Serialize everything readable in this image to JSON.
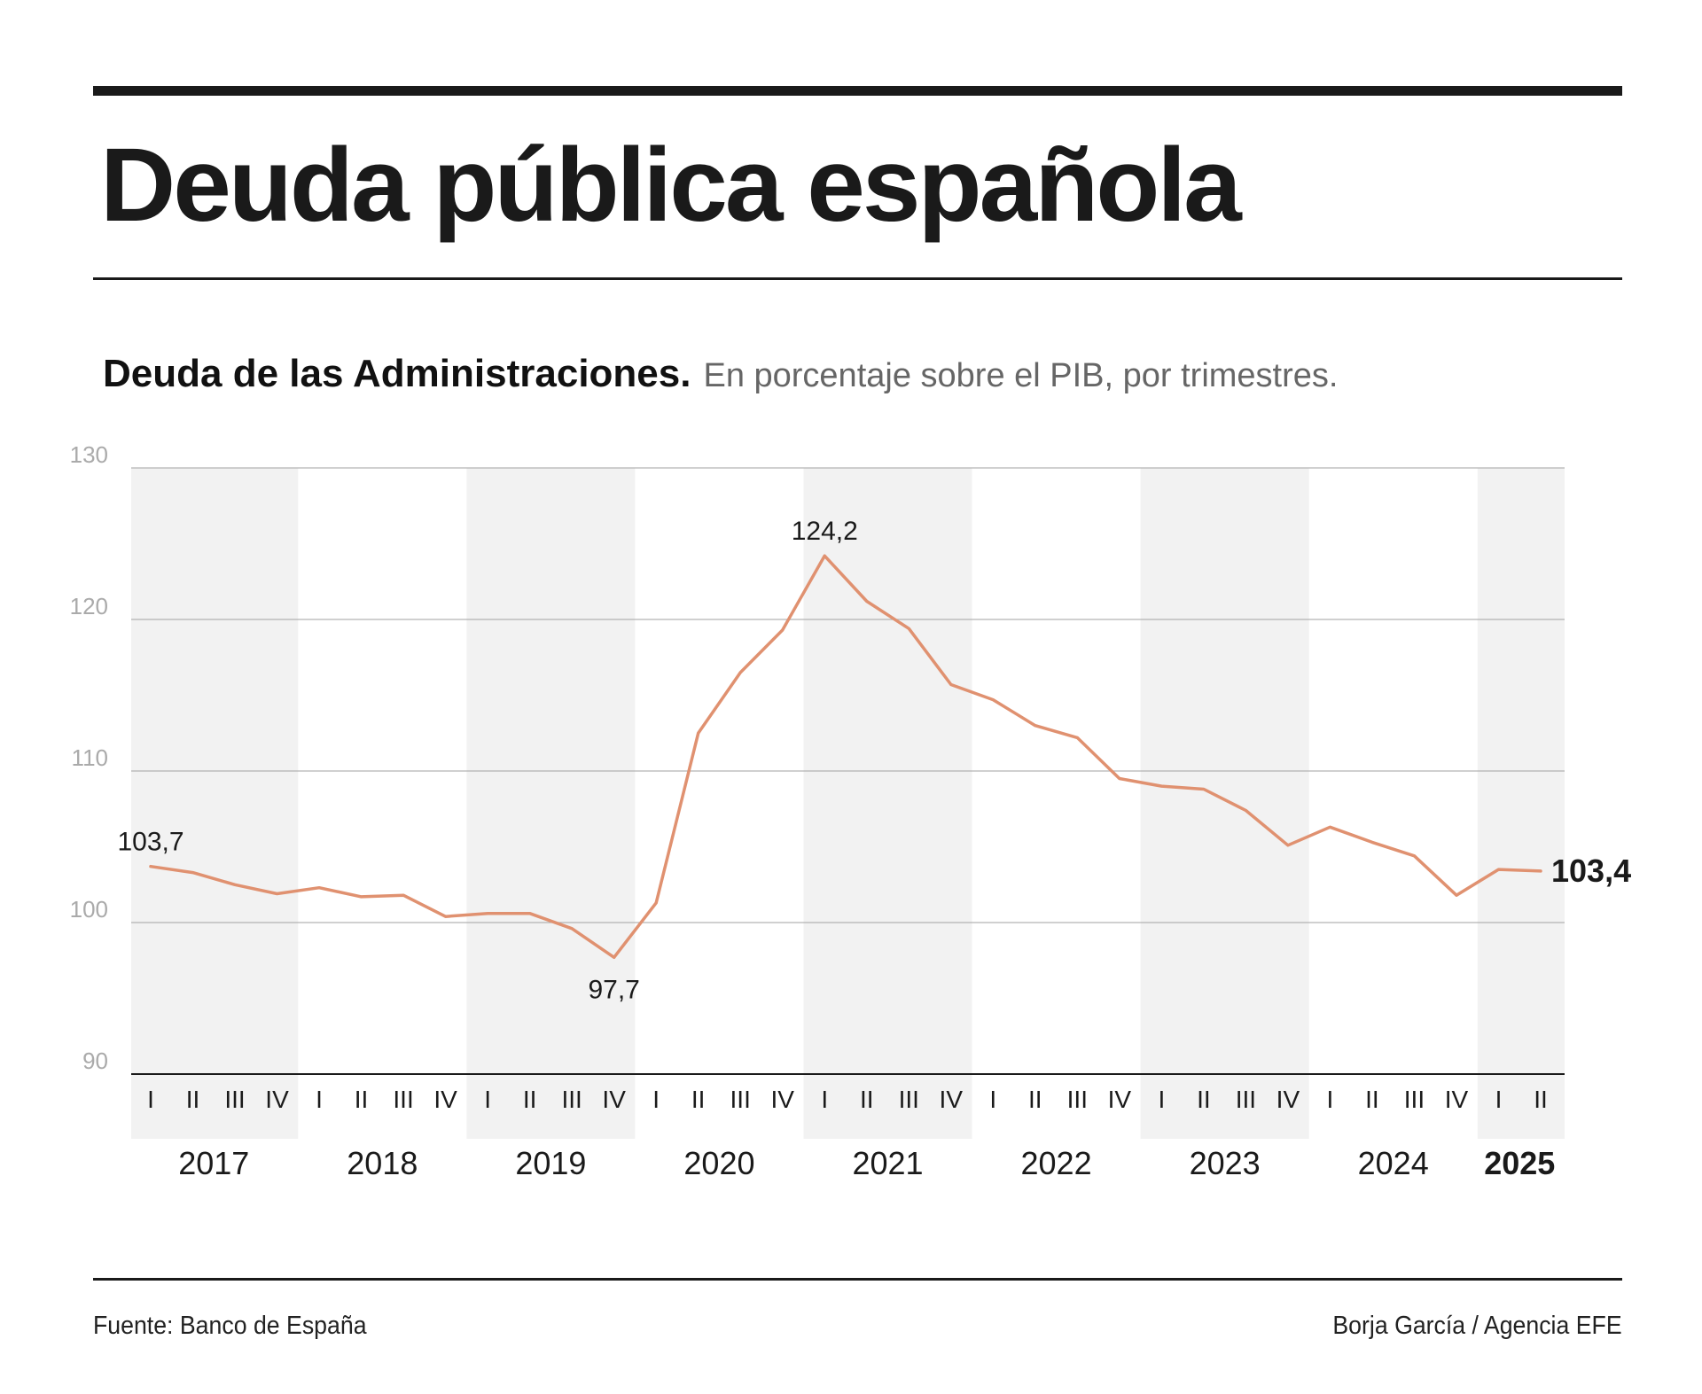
{
  "header": {
    "title": "Deuda pública española",
    "subtitle_bold": "Deuda de las Administraciones.",
    "subtitle_light": "En porcentaje sobre el PIB, por trimestres."
  },
  "footer": {
    "source": "Fuente: Banco de España",
    "credit": "Borja García / Agencia EFE"
  },
  "colors": {
    "line": "#e09170",
    "band": "#f2f2f2",
    "grid": "#b3b3b3",
    "y_tick_text": "#aaaaaa",
    "text": "#1a1a1a"
  },
  "chart_data": {
    "type": "line",
    "ylim": [
      90,
      130
    ],
    "y_ticks": [
      90,
      100,
      110,
      120,
      130
    ],
    "grid": true,
    "years": [
      "2017",
      "2018",
      "2019",
      "2020",
      "2021",
      "2022",
      "2023",
      "2024",
      "2025"
    ],
    "shaded_years": [
      "2017",
      "2019",
      "2021",
      "2023",
      "2025"
    ],
    "highlighted_year": "2025",
    "quarter_labels": [
      "I",
      "II",
      "III",
      "IV"
    ],
    "series": [
      {
        "values": [
          103.7,
          103.3,
          102.5,
          101.9,
          102.3,
          101.7,
          101.8,
          100.4,
          100.6,
          100.6,
          99.6,
          97.7,
          101.3,
          112.5,
          116.5,
          119.3,
          124.2,
          121.2,
          119.4,
          115.7,
          114.7,
          113.0,
          112.2,
          109.5,
          109.0,
          108.8,
          107.4,
          105.1,
          106.3,
          105.3,
          104.4,
          101.8,
          103.5,
          103.4
        ]
      }
    ],
    "annotations": [
      {
        "index": 0,
        "label": "103,7",
        "position": "above"
      },
      {
        "index": 11,
        "label": "97,7",
        "position": "below"
      },
      {
        "index": 16,
        "label": "124,2",
        "position": "above"
      },
      {
        "index": 33,
        "label": "103,4",
        "position": "right",
        "bold": true
      }
    ]
  }
}
